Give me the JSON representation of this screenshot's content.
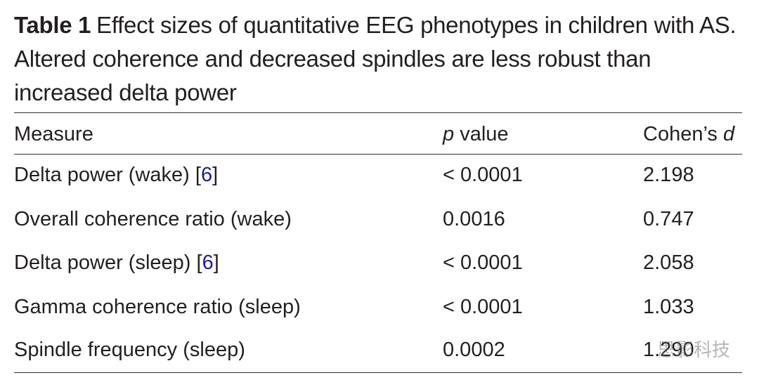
{
  "caption": {
    "label": "Table 1",
    "text": "Effect sizes of quantitative EEG phenotypes in children with AS. Altered coherence and decreased spindles are less robust than increased delta power"
  },
  "table": {
    "columns": [
      {
        "text": "Measure"
      },
      {
        "symbol": "p",
        "text": "value"
      },
      {
        "text": "Cohen’s",
        "symbol": "d"
      }
    ],
    "rows": [
      {
        "measure": "Delta power (wake)",
        "ref": {
          "open": "[",
          "number": "6",
          "close": "]"
        },
        "p": "< 0.0001",
        "d": "2.198"
      },
      {
        "measure": "Overall coherence ratio (wake)",
        "p": "0.0016",
        "d": "0.747"
      },
      {
        "measure": "Delta power (sleep)",
        "ref": {
          "open": "[",
          "number": "6",
          "close": "]"
        },
        "p": "< 0.0001",
        "d": "2.058"
      },
      {
        "measure": "Gamma coherence ratio (sleep)",
        "p": "< 0.0001",
        "d": "1.033"
      },
      {
        "measure": "Spindle frequency (sleep)",
        "p": "0.0002",
        "d": "1.290"
      }
    ]
  },
  "watermark": "思影科技"
}
